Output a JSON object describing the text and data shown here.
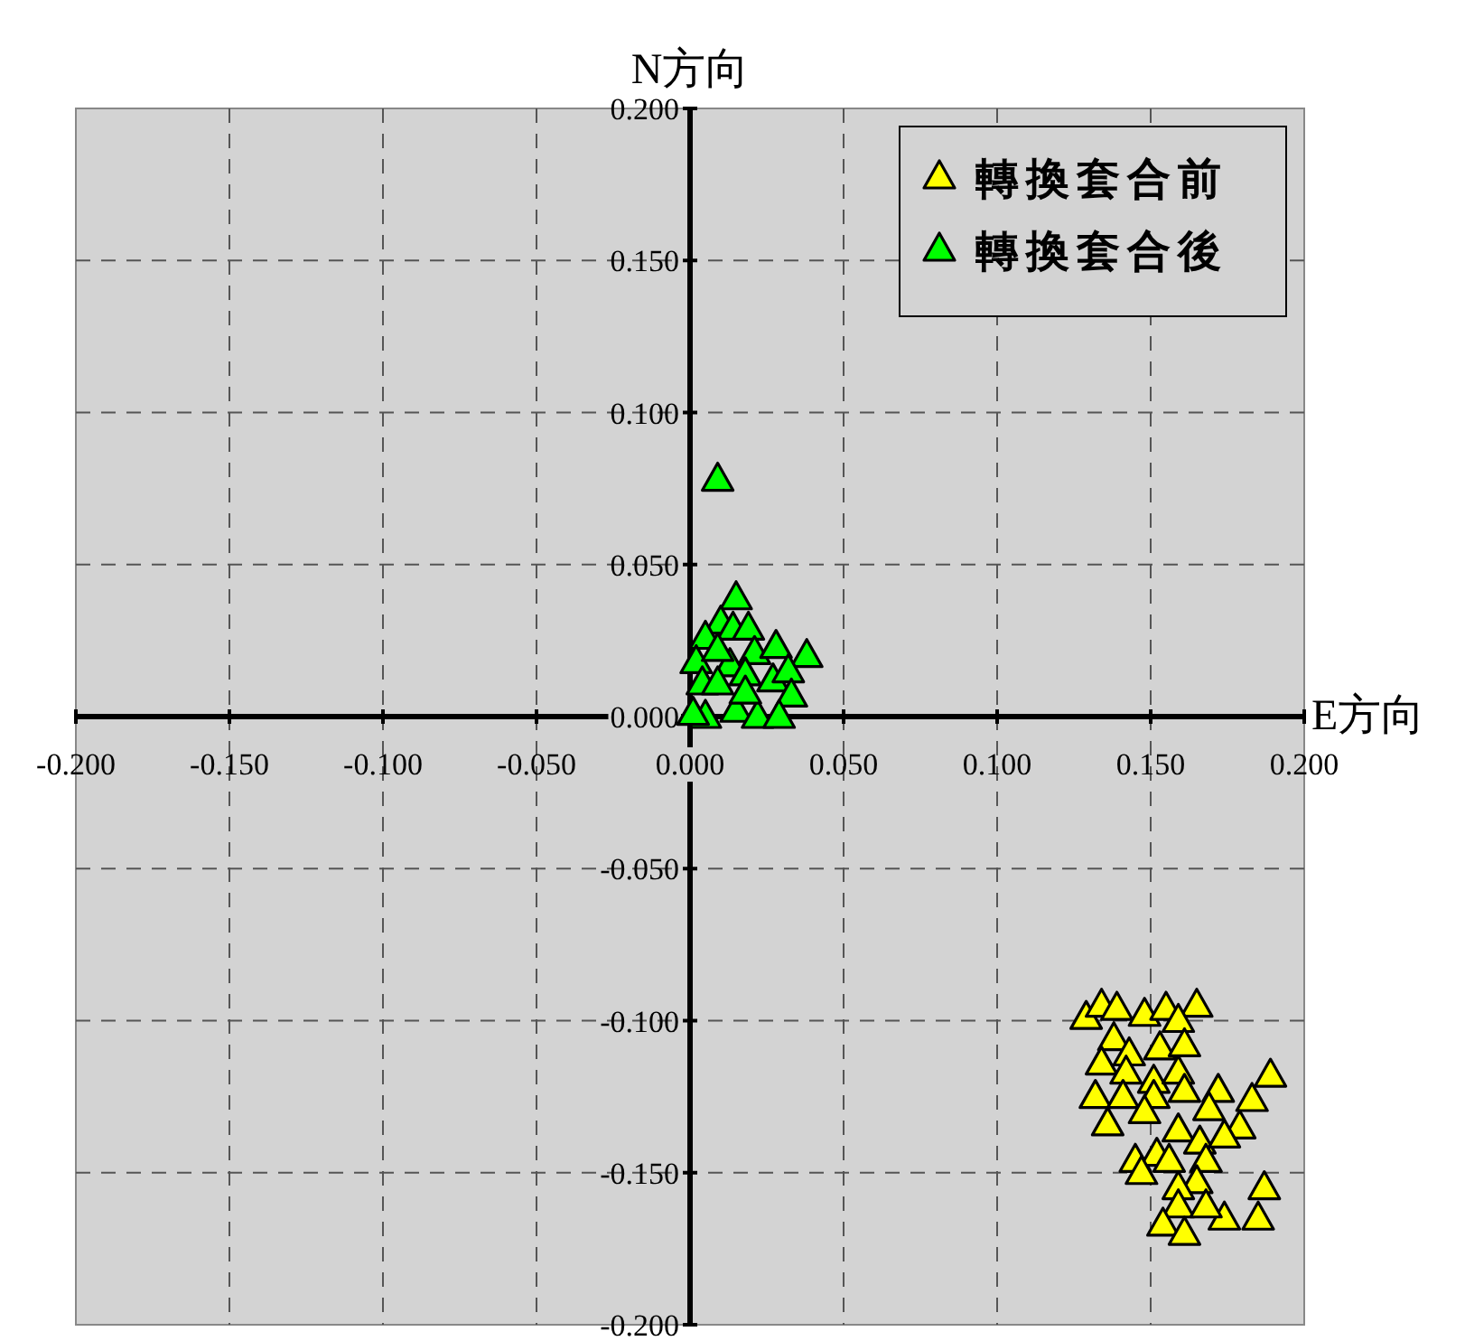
{
  "chart_data": {
    "type": "scatter",
    "xlabel": "E方向",
    "ylabel": "N方向",
    "xlim": [
      -0.2,
      0.2
    ],
    "ylim": [
      -0.2,
      0.2
    ],
    "xticks": [
      {
        "value": -0.2,
        "label": "-0.200"
      },
      {
        "value": -0.15,
        "label": "-0.150"
      },
      {
        "value": -0.1,
        "label": "-0.100"
      },
      {
        "value": -0.05,
        "label": "-0.050"
      },
      {
        "value": 0,
        "label": "0.000"
      },
      {
        "value": 0.05,
        "label": "0.050"
      },
      {
        "value": 0.1,
        "label": "0.100"
      },
      {
        "value": 0.15,
        "label": "0.150"
      },
      {
        "value": 0.2,
        "label": "0.200"
      }
    ],
    "yticks": [
      {
        "value": -0.2,
        "label": "-0.200"
      },
      {
        "value": -0.15,
        "label": "-0.150"
      },
      {
        "value": -0.1,
        "label": "-0.100"
      },
      {
        "value": -0.05,
        "label": "-0.050"
      },
      {
        "value": 0,
        "label": "0.000"
      },
      {
        "value": 0.05,
        "label": "0.050"
      },
      {
        "value": 0.1,
        "label": "0.100"
      },
      {
        "value": 0.15,
        "label": "0.150"
      },
      {
        "value": 0.2,
        "label": "0.200"
      }
    ],
    "grid": true,
    "legend": "top right",
    "marker": "triangle",
    "series": [
      {
        "name": "轉換套合前",
        "color": "#ffff00",
        "x": [
          0.129,
          0.134,
          0.139,
          0.148,
          0.155,
          0.165,
          0.159,
          0.138,
          0.134,
          0.143,
          0.153,
          0.161,
          0.142,
          0.151,
          0.159,
          0.132,
          0.141,
          0.151,
          0.161,
          0.172,
          0.189,
          0.183,
          0.136,
          0.148,
          0.169,
          0.179,
          0.159,
          0.166,
          0.174,
          0.145,
          0.152,
          0.156,
          0.147,
          0.168,
          0.165,
          0.159,
          0.187,
          0.159,
          0.174,
          0.185,
          0.154,
          0.161,
          0.168
        ],
        "values": [
          -0.099,
          -0.095,
          -0.096,
          -0.098,
          -0.096,
          -0.095,
          -0.1,
          -0.106,
          -0.114,
          -0.111,
          -0.109,
          -0.108,
          -0.117,
          -0.12,
          -0.117,
          -0.125,
          -0.125,
          -0.125,
          -0.123,
          -0.123,
          -0.118,
          -0.126,
          -0.134,
          -0.13,
          -0.129,
          -0.135,
          -0.136,
          -0.14,
          -0.138,
          -0.146,
          -0.144,
          -0.146,
          -0.15,
          -0.146,
          -0.153,
          -0.155,
          -0.155,
          -0.161,
          -0.165,
          -0.165,
          -0.167,
          -0.17,
          -0.161
        ]
      },
      {
        "name": "轉換套合後",
        "color": "#00ff00",
        "x": [
          0.009,
          0.015,
          0.01,
          0.014,
          0.019,
          0.005,
          0.021,
          0.028,
          0.038,
          0.013,
          0.002,
          0.004,
          0.009,
          0.018,
          0.027,
          0.032,
          0.033,
          0.005,
          0.015,
          0.022,
          0.029,
          0.001,
          0.018,
          0.009
        ],
        "values": [
          0.078,
          0.039,
          0.031,
          0.029,
          0.029,
          0.026,
          0.021,
          0.023,
          0.02,
          0.017,
          0.018,
          0.011,
          0.011,
          0.014,
          0.012,
          0.015,
          0.007,
          0.0,
          0.002,
          0.0,
          0.0,
          0.001,
          0.008,
          0.022
        ]
      }
    ]
  }
}
